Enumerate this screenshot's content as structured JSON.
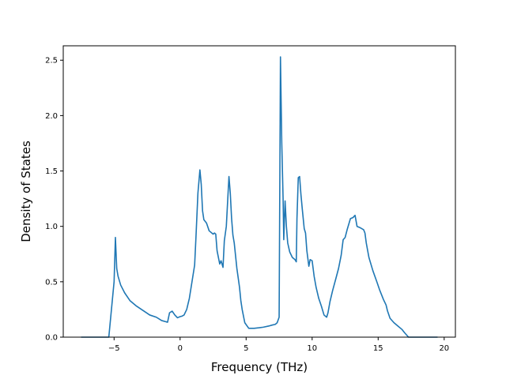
{
  "chart_data": {
    "type": "line",
    "title": "",
    "xlabel": "Frequency (THz)",
    "ylabel": "Density of States",
    "xlim": [
      -8.85,
      20.85
    ],
    "ylim": [
      0,
      2.63
    ],
    "xticks": [
      -5,
      0,
      5,
      10,
      15,
      20
    ],
    "xtick_labels": [
      "−5",
      "0",
      "5",
      "10",
      "15",
      "20"
    ],
    "yticks": [
      0.0,
      0.5,
      1.0,
      1.5,
      2.0,
      2.5
    ],
    "ytick_labels": [
      "0.0",
      "0.5",
      "1.0",
      "1.5",
      "2.0",
      "2.5"
    ],
    "grid": false,
    "legend": "none",
    "colors": {
      "line": "#1f77b4"
    },
    "series": [
      {
        "x": [
          -7.5,
          -5.4,
          -5.2,
          -5.0,
          -4.9,
          -4.8,
          -4.7,
          -4.5,
          -4.2,
          -3.8,
          -3.3,
          -2.8,
          -2.3,
          -1.8,
          -1.4,
          -1.1,
          -0.95,
          -0.8,
          -0.6,
          -0.4,
          -0.2,
          0.0,
          0.15,
          0.3,
          0.5,
          0.7,
          0.9,
          1.1,
          1.2,
          1.35,
          1.5,
          1.6,
          1.7,
          1.8,
          2.0,
          2.2,
          2.5,
          2.6,
          2.7,
          2.8,
          3.0,
          3.1,
          3.25,
          3.35,
          3.5,
          3.7,
          3.8,
          3.9,
          4.0,
          4.1,
          4.3,
          4.5,
          4.6,
          4.7,
          4.9,
          5.2,
          5.6,
          6.0,
          6.3,
          6.7,
          7.0,
          7.2,
          7.35,
          7.5,
          7.6,
          7.7,
          7.8,
          7.85,
          7.95,
          8.05,
          8.15,
          8.3,
          8.5,
          8.7,
          8.8,
          8.85,
          8.95,
          9.05,
          9.15,
          9.25,
          9.4,
          9.5,
          9.6,
          9.75,
          9.85,
          10.0,
          10.15,
          10.3,
          10.5,
          10.7,
          10.9,
          11.1,
          11.2,
          11.35,
          11.55,
          11.8,
          12.0,
          12.2,
          12.35,
          12.5,
          12.65,
          12.9,
          13.1,
          13.25,
          13.4,
          13.6,
          13.9,
          14.0,
          14.1,
          14.3,
          14.6,
          14.9,
          15.1,
          15.4,
          15.6,
          15.7,
          15.9,
          16.2,
          16.5,
          16.8,
          17.0,
          17.3,
          17.5,
          18.5,
          19.5
        ],
        "y": [
          0.0,
          0.0,
          0.25,
          0.5,
          0.9,
          0.62,
          0.55,
          0.47,
          0.4,
          0.33,
          0.28,
          0.24,
          0.2,
          0.18,
          0.15,
          0.14,
          0.135,
          0.22,
          0.235,
          0.2,
          0.175,
          0.185,
          0.19,
          0.2,
          0.25,
          0.35,
          0.5,
          0.65,
          0.9,
          1.3,
          1.51,
          1.38,
          1.14,
          1.06,
          1.03,
          0.96,
          0.93,
          0.94,
          0.93,
          0.78,
          0.66,
          0.69,
          0.63,
          0.87,
          1.0,
          1.45,
          1.3,
          1.07,
          0.92,
          0.85,
          0.62,
          0.45,
          0.33,
          0.25,
          0.13,
          0.08,
          0.08,
          0.085,
          0.09,
          0.1,
          0.11,
          0.115,
          0.13,
          0.18,
          2.53,
          1.75,
          1.25,
          0.88,
          1.23,
          1.0,
          0.85,
          0.77,
          0.72,
          0.7,
          0.68,
          1.07,
          1.44,
          1.45,
          1.29,
          1.16,
          0.98,
          0.94,
          0.78,
          0.64,
          0.7,
          0.69,
          0.55,
          0.45,
          0.35,
          0.28,
          0.2,
          0.18,
          0.22,
          0.32,
          0.42,
          0.53,
          0.62,
          0.74,
          0.88,
          0.9,
          0.97,
          1.07,
          1.08,
          1.1,
          1.0,
          0.99,
          0.97,
          0.94,
          0.85,
          0.72,
          0.6,
          0.5,
          0.43,
          0.34,
          0.29,
          0.24,
          0.17,
          0.13,
          0.1,
          0.07,
          0.04,
          0.0,
          0.0,
          0.0,
          0.0
        ]
      }
    ]
  }
}
